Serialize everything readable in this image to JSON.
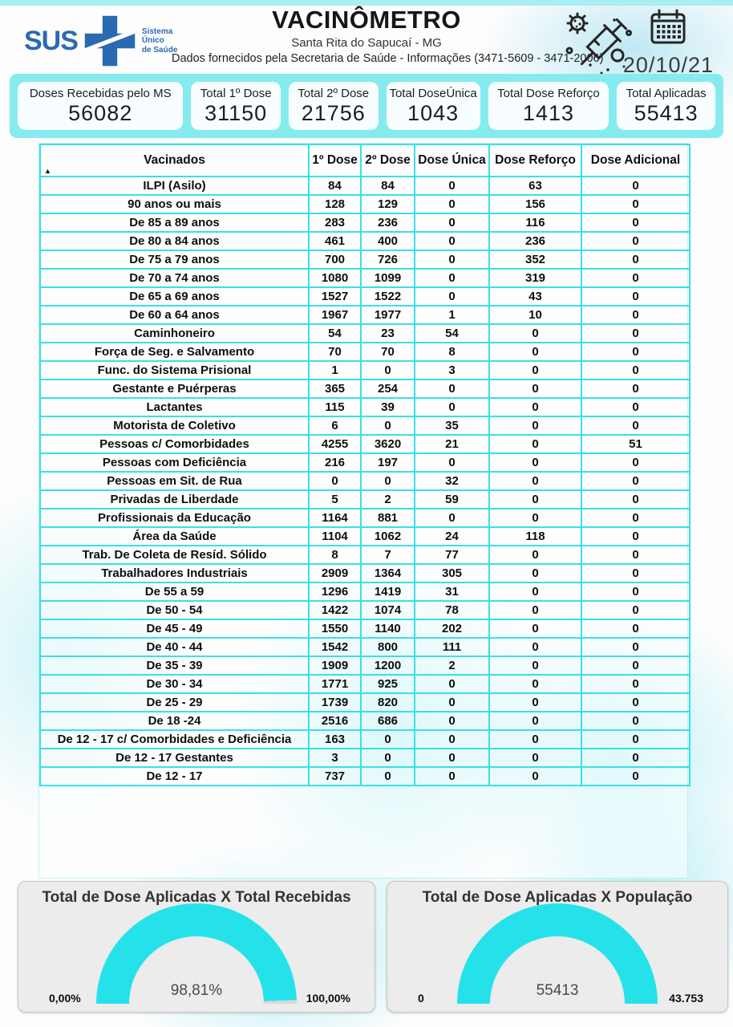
{
  "header": {
    "logo_text": "SUS",
    "logo_subtitle": "Sistema\nÚnico\nde Saúde",
    "title": "VACINÔMETRO",
    "subtitle": "Santa Rita do Sapucaí - MG",
    "info": "Dados fornecidos pela Secretaria de Saúde - Informações (3471-5609 - 3471-2006)",
    "date": "20/10/21"
  },
  "icons": {
    "sort_indicator": "▲"
  },
  "summary": {
    "cards": [
      {
        "label": "Doses Recebidas pelo MS",
        "value": "56082"
      },
      {
        "label": "Total 1º Dose",
        "value": "31150"
      },
      {
        "label": "Total 2º Dose",
        "value": "21756"
      },
      {
        "label": "Total DoseÚnica",
        "value": "1043"
      },
      {
        "label": "Total Dose Reforço",
        "value": "1413"
      },
      {
        "label": "Total Aplicadas",
        "value": "55413"
      }
    ]
  },
  "table": {
    "columns": [
      "Vacinados",
      "1º Dose",
      "2º Dose",
      "Dose Única",
      "Dose Reforço",
      "Dose Adicional"
    ],
    "rows": [
      [
        "ILPI (Asilo)",
        84,
        84,
        0,
        63,
        0
      ],
      [
        "90 anos ou mais",
        128,
        129,
        0,
        156,
        0
      ],
      [
        "De 85 a 89 anos",
        283,
        236,
        0,
        116,
        0
      ],
      [
        "De 80 a 84 anos",
        461,
        400,
        0,
        236,
        0
      ],
      [
        "De 75 a 79 anos",
        700,
        726,
        0,
        352,
        0
      ],
      [
        "De 70 a 74 anos",
        1080,
        1099,
        0,
        319,
        0
      ],
      [
        "De 65 a 69 anos",
        1527,
        1522,
        0,
        43,
        0
      ],
      [
        "De 60 a 64 anos",
        1967,
        1977,
        1,
        10,
        0
      ],
      [
        "Caminhoneiro",
        54,
        23,
        54,
        0,
        0
      ],
      [
        "Força de Seg. e Salvamento",
        70,
        70,
        8,
        0,
        0
      ],
      [
        "Func. do Sistema Prisional",
        1,
        0,
        3,
        0,
        0
      ],
      [
        "Gestante e Puérperas",
        365,
        254,
        0,
        0,
        0
      ],
      [
        "Lactantes",
        115,
        39,
        0,
        0,
        0
      ],
      [
        "Motorista de Coletivo",
        6,
        0,
        35,
        0,
        0
      ],
      [
        "Pessoas c/ Comorbidades",
        4255,
        3620,
        21,
        0,
        51
      ],
      [
        "Pessoas com Deficiência",
        216,
        197,
        0,
        0,
        0
      ],
      [
        "Pessoas em Sit. de Rua",
        0,
        0,
        32,
        0,
        0
      ],
      [
        "Privadas de Liberdade",
        5,
        2,
        59,
        0,
        0
      ],
      [
        "Profissionais da Educação",
        1164,
        881,
        0,
        0,
        0
      ],
      [
        "Área da Saúde",
        1104,
        1062,
        24,
        118,
        0
      ],
      [
        "Trab. De Coleta de Resíd. Sólido",
        8,
        7,
        77,
        0,
        0
      ],
      [
        "Trabalhadores Industriais",
        2909,
        1364,
        305,
        0,
        0
      ],
      [
        "De 55 a 59",
        1296,
        1419,
        31,
        0,
        0
      ],
      [
        "De 50 - 54",
        1422,
        1074,
        78,
        0,
        0
      ],
      [
        "De 45 - 49",
        1550,
        1140,
        202,
        0,
        0
      ],
      [
        "De 40 - 44",
        1542,
        800,
        111,
        0,
        0
      ],
      [
        "De 35 - 39",
        1909,
        1200,
        2,
        0,
        0
      ],
      [
        "De 30 - 34",
        1771,
        925,
        0,
        0,
        0
      ],
      [
        "De 25 - 29",
        1739,
        820,
        0,
        0,
        0
      ],
      [
        "De 18 -24",
        2516,
        686,
        0,
        0,
        0
      ],
      [
        "De 12 - 17 c/ Comorbidades e Deficiência",
        163,
        0,
        0,
        0,
        0
      ],
      [
        "De 12 - 17 Gestantes",
        3,
        0,
        0,
        0,
        0
      ],
      [
        "De 12 - 17",
        737,
        0,
        0,
        0,
        0
      ]
    ]
  },
  "gauges": [
    {
      "title": "Total de Dose Aplicadas X Total Recebidas",
      "value_label": "98,81%",
      "min_label": "0,00%",
      "max_label": "100,00%",
      "percent_of_max": 98.81
    },
    {
      "title": "Total de Dose Aplicadas X População",
      "value_label": "55413",
      "min_label": "0",
      "max_label": "43.753",
      "percent_of_max": 100
    }
  ],
  "chart_data": [
    {
      "type": "gauge",
      "title": "Total de Dose Aplicadas X Total Recebidas",
      "value": 98.81,
      "min": 0,
      "max": 100,
      "unit": "%",
      "value_label": "98,81%"
    },
    {
      "type": "gauge",
      "title": "Total de Dose Aplicadas X População",
      "value": 55413,
      "min": 0,
      "max": 43753,
      "value_label": "55413"
    }
  ],
  "colors": {
    "table_border": "#38e0e7",
    "band": "#85ebee",
    "gauge_fill": "#25e2ea",
    "gauge_track": "#d9d9d9",
    "sus_blue": "#2a6ab2"
  }
}
